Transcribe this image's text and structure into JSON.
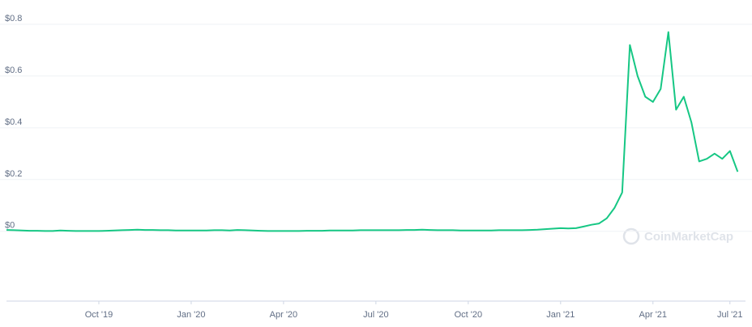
{
  "chart_data": {
    "type": "line",
    "watermark": "CoinMarketCap",
    "series": [
      {
        "color": "#16c784",
        "values": [
          0.005,
          0.004,
          0.003,
          0.002,
          0.002,
          0.001,
          0.001,
          0.003,
          0.002,
          0.001,
          0.001,
          0.001,
          0.001,
          0.002,
          0.003,
          0.004,
          0.005,
          0.006,
          0.005,
          0.005,
          0.004,
          0.004,
          0.003,
          0.003,
          0.003,
          0.003,
          0.003,
          0.004,
          0.004,
          0.003,
          0.005,
          0.004,
          0.003,
          0.002,
          0.001,
          0.001,
          0.001,
          0.001,
          0.001,
          0.002,
          0.002,
          0.002,
          0.003,
          0.003,
          0.003,
          0.003,
          0.004,
          0.004,
          0.004,
          0.004,
          0.004,
          0.004,
          0.005,
          0.005,
          0.006,
          0.005,
          0.004,
          0.004,
          0.004,
          0.003,
          0.003,
          0.003,
          0.003,
          0.003,
          0.004,
          0.004,
          0.004,
          0.004,
          0.005,
          0.006,
          0.008,
          0.01,
          0.012,
          0.011,
          0.012,
          0.018,
          0.025,
          0.03,
          0.05,
          0.09,
          0.15,
          0.72,
          0.6,
          0.52,
          0.5,
          0.55,
          0.77,
          0.47,
          0.52,
          0.42,
          0.27,
          0.28,
          0.3,
          0.28,
          0.31,
          0.23
        ]
      }
    ],
    "xlim": [
      0,
      95.5
    ],
    "xticks": [
      {
        "value": 12,
        "label": "Oct '19"
      },
      {
        "value": 24,
        "label": "Jan '20"
      },
      {
        "value": 36,
        "label": "Apr '20"
      },
      {
        "value": 48,
        "label": "Jul '20"
      },
      {
        "value": 60,
        "label": "Oct '20"
      },
      {
        "value": 72,
        "label": "Jan '21"
      },
      {
        "value": 84,
        "label": "Apr '21"
      },
      {
        "value": 94,
        "label": "Jul '21"
      }
    ],
    "ylim": [
      -0.27,
      0.85
    ],
    "yticks": [
      {
        "value": 0,
        "label": "$0"
      },
      {
        "value": 0.2,
        "label": "$0.2"
      },
      {
        "value": 0.4,
        "label": "$0.4"
      },
      {
        "value": 0.6,
        "label": "$0.6"
      },
      {
        "value": 0.8,
        "label": "$0.8"
      }
    ],
    "grid": true
  }
}
